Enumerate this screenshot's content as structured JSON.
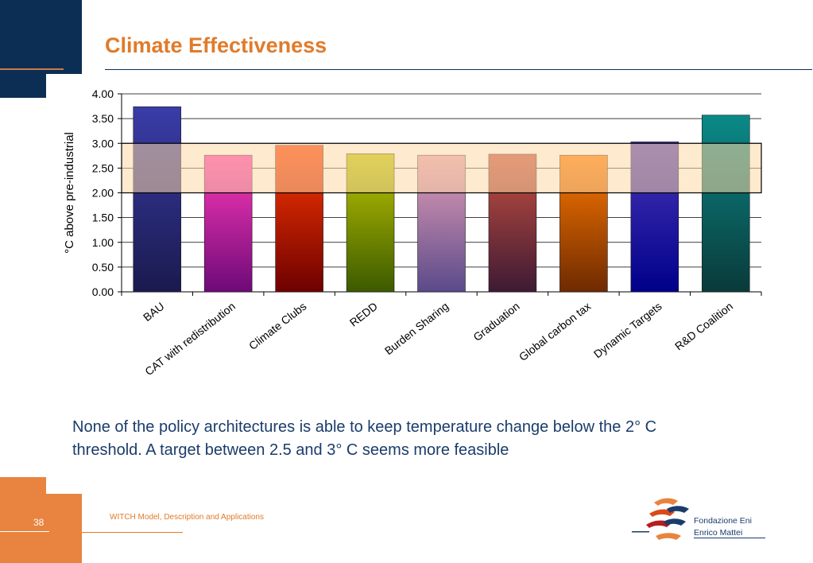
{
  "slide": {
    "title": "Climate Effectiveness",
    "caption_line1": "None of the policy architectures is able to keep temperature change below the 2° C",
    "caption_line2": "threshold. A target between 2.5 and 3° C seems more feasible",
    "page_number": "38",
    "footer": "WITCH Model, Description and Applications",
    "logo": {
      "line1": "Fondazione Eni",
      "line2": "Enrico Mattei"
    },
    "colors": {
      "navy": "#0d2e54",
      "orange": "#e8843f",
      "title": "#e07b2a",
      "caption": "#1b3c6b"
    }
  },
  "chart_data": {
    "type": "bar",
    "categories": [
      "BAU",
      "CAT with redistribution",
      "Climate Clubs",
      "REDD",
      "Burden Sharing",
      "Graduation",
      "Global carbon tax",
      "Dynamic Targets",
      "R&D Coalition"
    ],
    "values": [
      3.74,
      2.76,
      2.96,
      2.79,
      2.76,
      2.78,
      2.76,
      3.03,
      3.57
    ],
    "ylabel": "°C above pre-industrial",
    "ylim": [
      0,
      4
    ],
    "yticks": [
      "0.00",
      "0.50",
      "1.00",
      "1.50",
      "2.00",
      "2.50",
      "3.00",
      "3.50",
      "4.00"
    ],
    "grid": true,
    "highlight_band": [
      2.0,
      3.0
    ],
    "band_color": "#fdd9a6",
    "bar_colors": [
      {
        "top": "#3a3ca8",
        "bottom": "#1a1a4e"
      },
      {
        "top": "#ff3ab8",
        "bottom": "#6e0a78"
      },
      {
        "top": "#ff3a00",
        "bottom": "#6e0000"
      },
      {
        "top": "#bfc600",
        "bottom": "#3c5a00"
      },
      {
        "top": "#e8a0b8",
        "bottom": "#5a4a8a"
      },
      {
        "top": "#c85040",
        "bottom": "#3e1a34"
      },
      {
        "top": "#ff7a00",
        "bottom": "#6e2a00"
      },
      {
        "top": "#4a36b8",
        "bottom": "#00008a"
      },
      {
        "top": "#0a8a88",
        "bottom": "#0a3a3a"
      }
    ]
  }
}
